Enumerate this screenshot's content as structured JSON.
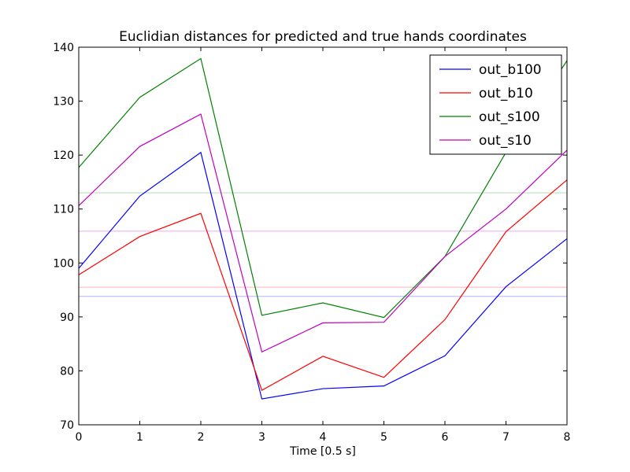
{
  "chart_data": {
    "type": "line",
    "title": "Euclidian distances for predicted and true hands coordinates",
    "xlabel": "Time [0.5 s]",
    "ylabel": "",
    "xlim": [
      0,
      8
    ],
    "ylim": [
      70,
      140
    ],
    "grid": false,
    "legend_position": "top-right",
    "x": [
      0,
      1,
      2,
      3,
      4,
      5,
      6,
      7,
      8
    ],
    "x_ticks": [
      "0",
      "1",
      "2",
      "3",
      "4",
      "5",
      "6",
      "7",
      "8"
    ],
    "y_ticks": [
      "70",
      "80",
      "90",
      "100",
      "110",
      "120",
      "130",
      "140"
    ],
    "series": [
      {
        "name": "out_b100",
        "color": "#0000ff",
        "values": [
          99.0,
          112.4,
          120.5,
          74.8,
          76.7,
          77.2,
          82.8,
          95.6,
          104.5
        ]
      },
      {
        "name": "out_b10",
        "color": "#ff0000",
        "values": [
          97.8,
          104.9,
          109.2,
          76.4,
          82.7,
          78.8,
          89.5,
          105.8,
          115.4
        ]
      },
      {
        "name": "out_s100",
        "color": "#008000",
        "values": [
          117.7,
          130.7,
          137.9,
          90.3,
          92.6,
          89.9,
          101.2,
          120.5,
          137.5
        ]
      },
      {
        "name": "out_s10",
        "color": "#bf00bf",
        "values": [
          110.6,
          121.6,
          127.6,
          83.5,
          88.9,
          89.0,
          101.2,
          110.0,
          120.9
        ]
      }
    ],
    "reference_lines": [
      {
        "y": 113.0,
        "color": "#b3dcb3"
      },
      {
        "y": 105.9,
        "color": "#efa6ef"
      },
      {
        "y": 95.5,
        "color": "#ffb3b3"
      },
      {
        "y": 93.8,
        "color": "#b3b3ff"
      }
    ]
  }
}
